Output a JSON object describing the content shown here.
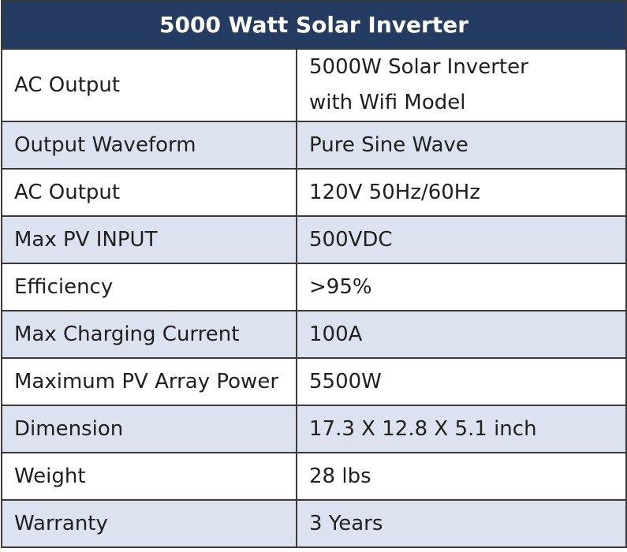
{
  "title": "5000 Watt Solar Inverter",
  "rows": [
    {
      "label": "AC Output",
      "value_lines": [
        "5000W Solar Inverter",
        "with Wifi Model"
      ]
    },
    {
      "label": "Output Waveform",
      "value": "Pure Sine Wave"
    },
    {
      "label": "AC Output",
      "value": "120V 50Hz/60Hz"
    },
    {
      "label": "Max PV INPUT",
      "value": "500VDC"
    },
    {
      "label": "Efficiency",
      "value": ">95%"
    },
    {
      "label": "Max Charging Current",
      "value": "100A"
    },
    {
      "label": "Maximum PV Array Power",
      "value": "5500W"
    },
    {
      "label": "Dimension",
      "value": "17.3 X 12.8 X 5.1 inch"
    },
    {
      "label": "Weight",
      "value": "28 lbs"
    },
    {
      "label": "Warranty",
      "value": "3 Years"
    }
  ],
  "colors": {
    "header_bg": "#243b62",
    "header_text": "#ffffff",
    "shaded_row": "#dde2f0",
    "plain_row": "#ffffff",
    "border": "#3a3a3a"
  }
}
